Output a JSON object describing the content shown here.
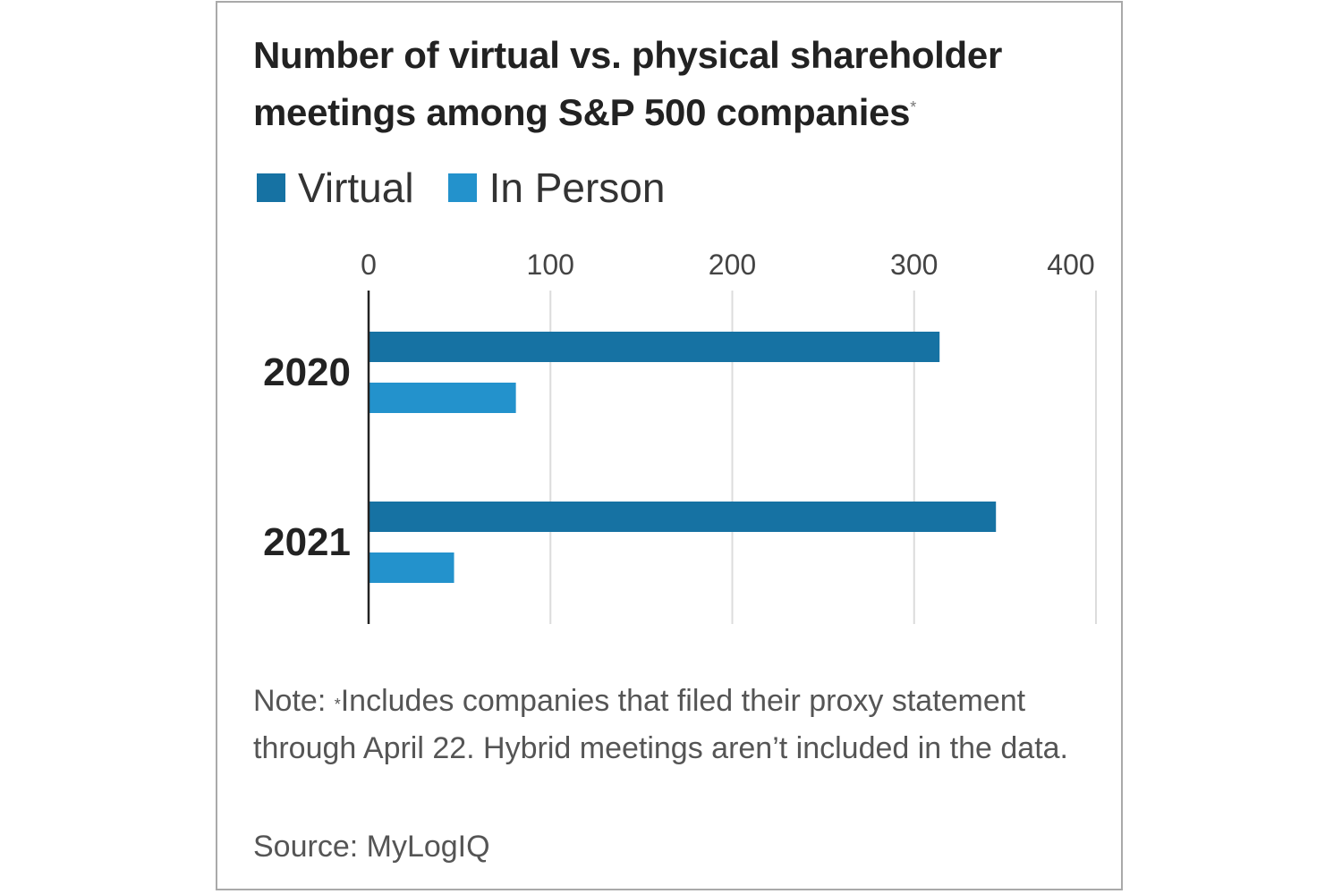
{
  "chart_data": {
    "type": "bar",
    "orientation": "horizontal",
    "title": "Number of virtual vs. physical shareholder meetings among S&P 500 companies",
    "title_marker": "*",
    "categories": [
      "2020",
      "2021"
    ],
    "series": [
      {
        "name": "Virtual",
        "color": "#1672a3",
        "values": [
          314,
          345
        ]
      },
      {
        "name": "In Person",
        "color": "#2392cc",
        "values": [
          81,
          47
        ]
      }
    ],
    "xlim": [
      0,
      400
    ],
    "xticks": [
      "0",
      "100",
      "200",
      "300",
      "400"
    ],
    "grid": true,
    "legend_placement": "top-left"
  },
  "note": {
    "prefix": "Note: ",
    "marker": "*",
    "text": "Includes companies that filed their proxy statement through April 22. Hybrid meetings aren’t included in the data."
  },
  "source": "Source: MyLogIQ"
}
